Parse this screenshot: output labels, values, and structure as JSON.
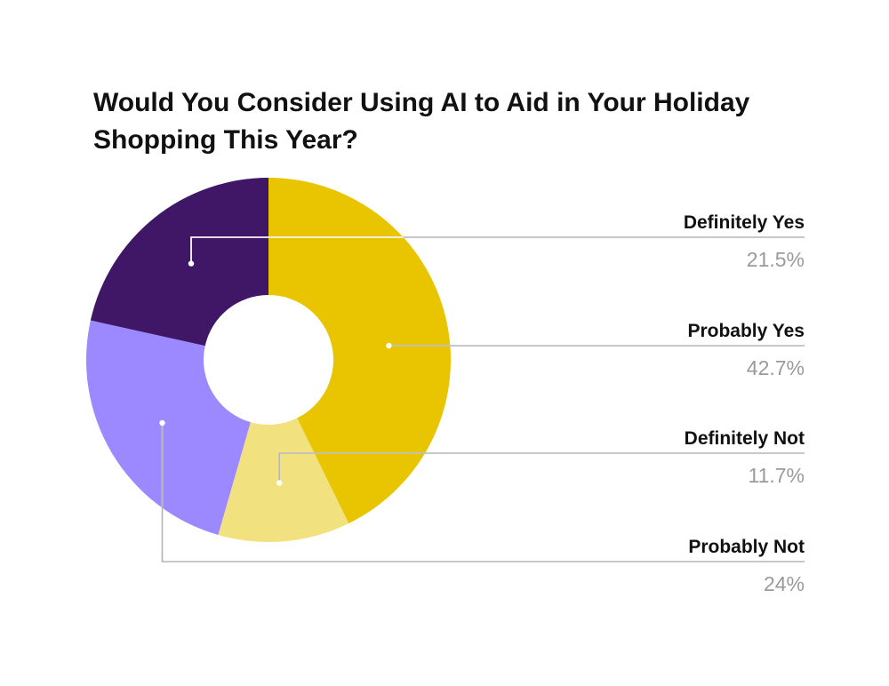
{
  "chart_data": {
    "type": "pie",
    "style": "donut",
    "title_lines": [
      "Would You Consider Using AI to Aid in Your Holiday",
      "Shopping This Year?"
    ],
    "slices": [
      {
        "label": "Probably Yes",
        "value": 42.7,
        "value_label": "42.7%",
        "color": "#E8C500"
      },
      {
        "label": "Definitely Not",
        "value": 11.7,
        "value_label": "11.7%",
        "color": "#F2E17F"
      },
      {
        "label": "Probably Not",
        "value": 24,
        "value_label": "24%",
        "color": "#9C88FF"
      },
      {
        "label": "Definitely Yes",
        "value": 21.5,
        "value_label": "21.5%",
        "color": "#3F1766"
      }
    ],
    "legend": [
      {
        "label": "Definitely Yes",
        "value_label": "21.5%",
        "slice": 3
      },
      {
        "label": "Probably Yes",
        "value_label": "42.7%",
        "slice": 0
      },
      {
        "label": "Definitely Not",
        "value_label": "11.7%",
        "slice": 1
      },
      {
        "label": "Probably Not",
        "value_label": "24%",
        "slice": 2
      }
    ],
    "legend_placement": "right"
  }
}
